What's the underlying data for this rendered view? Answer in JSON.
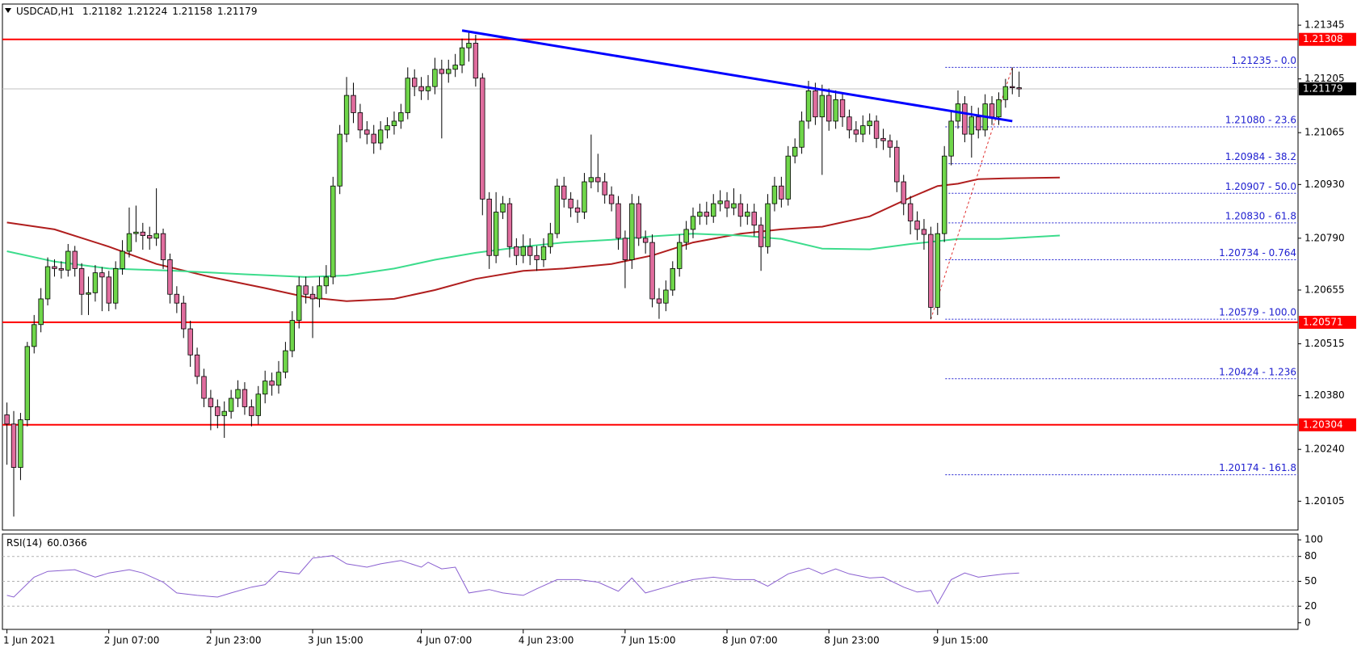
{
  "chart_data": [
    {
      "type": "candlestick",
      "title": "USDCAD,H1",
      "ohlc": {
        "open": [
          1.2033,
          1.20306,
          1.20193,
          1.20317,
          1.20508,
          1.20565,
          1.20632,
          1.20716,
          1.20711,
          1.20707,
          1.20756,
          1.20711,
          1.20644,
          1.20648,
          1.207,
          1.20689,
          1.20621,
          1.20711,
          1.20756,
          1.20802,
          1.20806,
          1.20797,
          1.2079,
          1.20802,
          1.20734,
          1.20644,
          1.20621,
          1.20554,
          1.20486,
          1.2043,
          1.20373,
          1.20351,
          1.20328,
          1.20339,
          1.20373,
          1.20396,
          1.20351,
          1.20328,
          1.20384,
          1.20418,
          1.20407,
          1.20441,
          1.20497,
          1.20576,
          1.20666,
          1.20644,
          1.20632,
          1.20666,
          1.20689,
          1.20926,
          1.21061,
          1.21162,
          1.21117,
          1.21072,
          1.21061,
          1.21038,
          1.21072,
          1.21083,
          1.21095,
          1.21117,
          1.21207,
          1.21185,
          1.21174,
          1.21185,
          1.2123,
          1.21219,
          1.2123,
          1.21241,
          1.21286,
          1.21298,
          1.21207,
          1.20892,
          1.20745,
          1.20858,
          1.2088,
          1.20768,
          1.20745,
          1.20768,
          1.20745,
          1.20734,
          1.20768,
          1.20802,
          1.20926,
          1.20892,
          1.20869,
          1.20858,
          1.20937,
          1.20948,
          1.20937,
          1.20903,
          1.2088,
          1.2079,
          1.20734,
          1.2088,
          1.2079,
          1.20779,
          1.20632,
          1.20621,
          1.20655,
          1.20711,
          1.20779,
          1.20813,
          1.20847,
          1.20858,
          1.20847,
          1.2088,
          1.20887,
          1.20869,
          1.2088,
          1.20847,
          1.20858,
          1.20824,
          1.20768,
          1.2088,
          1.20926,
          1.20892,
          1.21004,
          1.21027,
          1.21095,
          1.21174,
          1.21106,
          1.21162,
          1.21095,
          1.21151,
          1.21106,
          1.21072,
          1.21061,
          1.21083,
          1.21095,
          1.2105,
          1.21044,
          1.21027,
          1.20937,
          1.2088,
          1.20835,
          1.20813,
          1.208,
          1.2061,
          1.20802,
          1.21004,
          1.21095,
          1.2114,
          1.21061,
          1.21106,
          1.21072,
          1.2114,
          1.21106,
          1.21151,
          1.21185,
          1.21182
        ],
        "high": [
          1.20362,
          1.2034,
          1.20335,
          1.2052,
          1.2059,
          1.2066,
          1.2074,
          1.20735,
          1.2073,
          1.20775,
          1.2077,
          1.20725,
          1.2069,
          1.2072,
          1.20715,
          1.20705,
          1.2073,
          1.20785,
          1.2087,
          1.20875,
          1.2083,
          1.2082,
          1.2092,
          1.20815,
          1.2075,
          1.20665,
          1.2064,
          1.20575,
          1.20505,
          1.2045,
          1.20395,
          1.2037,
          1.20365,
          1.20395,
          1.2042,
          1.20415,
          1.2037,
          1.20405,
          1.20445,
          1.2044,
          1.2047,
          1.2052,
          1.206,
          1.2069,
          1.2069,
          1.20665,
          1.2069,
          1.2072,
          1.2095,
          1.21085,
          1.2121,
          1.21195,
          1.2114,
          1.21095,
          1.21085,
          1.21095,
          1.21105,
          1.2112,
          1.2114,
          1.21235,
          1.2123,
          1.2121,
          1.21215,
          1.2126,
          1.21255,
          1.21255,
          1.2127,
          1.2131,
          1.2133,
          1.2132,
          1.2122,
          1.2091,
          1.2091,
          1.209,
          1.20895,
          1.2079,
          1.208,
          1.2079,
          1.2077,
          1.2079,
          1.2083,
          1.20945,
          1.2095,
          1.2091,
          1.2089,
          1.2096,
          1.2106,
          1.2101,
          1.2096,
          1.20925,
          1.209,
          1.2081,
          1.20905,
          1.209,
          1.2081,
          1.208,
          1.2066,
          1.2068,
          1.2073,
          1.208,
          1.20835,
          1.2087,
          1.2088,
          1.20885,
          1.20905,
          1.20915,
          1.2091,
          1.2092,
          1.20905,
          1.2088,
          1.2088,
          1.20845,
          1.20905,
          1.2095,
          1.2095,
          1.2103,
          1.2105,
          1.2112,
          1.212,
          1.21195,
          1.2119,
          1.2118,
          1.21175,
          1.2117,
          1.21125,
          1.21095,
          1.2111,
          1.21115,
          1.2111,
          1.21075,
          1.2106,
          1.21045,
          1.20955,
          1.209,
          1.2086,
          1.2084,
          1.2082,
          1.2083,
          1.2103,
          1.2112,
          1.21175,
          1.2116,
          1.21135,
          1.2113,
          1.21165,
          1.2116,
          1.2117,
          1.21205,
          1.21235,
          1.21224
        ],
        "low": [
          1.202,
          1.20065,
          1.2016,
          1.203,
          1.2049,
          1.20545,
          1.20615,
          1.2069,
          1.20685,
          1.2069,
          1.2069,
          1.2059,
          1.2059,
          1.20625,
          1.206,
          1.206,
          1.20605,
          1.20695,
          1.2074,
          1.2078,
          1.2076,
          1.2076,
          1.2077,
          1.2071,
          1.2062,
          1.20595,
          1.2053,
          1.20455,
          1.2041,
          1.2035,
          1.2029,
          1.20295,
          1.2027,
          1.2032,
          1.2035,
          1.2033,
          1.203,
          1.20305,
          1.2036,
          1.2038,
          1.20385,
          1.20425,
          1.2048,
          1.20555,
          1.2062,
          1.2053,
          1.2061,
          1.20645,
          1.2067,
          1.20905,
          1.2104,
          1.2109,
          1.2105,
          1.21035,
          1.2101,
          1.2102,
          1.2105,
          1.2106,
          1.21075,
          1.211,
          1.2116,
          1.2115,
          1.2115,
          1.21165,
          1.2105,
          1.21195,
          1.2121,
          1.2122,
          1.2125,
          1.21185,
          1.2085,
          1.2071,
          1.20725,
          1.2084,
          1.2074,
          1.2072,
          1.20725,
          1.2072,
          1.20705,
          1.20715,
          1.2075,
          1.2079,
          1.2087,
          1.20845,
          1.2083,
          1.2084,
          1.2092,
          1.2091,
          1.2088,
          1.2086,
          1.2076,
          1.2066,
          1.2071,
          1.2077,
          1.2075,
          1.2061,
          1.2058,
          1.206,
          1.2064,
          1.2069,
          1.2076,
          1.2079,
          1.20825,
          1.20825,
          1.2083,
          1.2086,
          1.20845,
          1.2085,
          1.2082,
          1.20825,
          1.20795,
          1.20705,
          1.2075,
          1.2086,
          1.2087,
          1.20875,
          1.20985,
          1.2101,
          1.21075,
          1.21085,
          1.20955,
          1.2107,
          1.21075,
          1.2108,
          1.2105,
          1.2104,
          1.2104,
          1.2106,
          1.21025,
          1.2102,
          1.21,
          1.2091,
          1.2085,
          1.208,
          1.20785,
          1.2076,
          1.20579,
          1.2059,
          1.2078,
          1.2098,
          1.21075,
          1.2104,
          1.21,
          1.2105,
          1.21055,
          1.21085,
          1.21085,
          1.2113,
          1.21165,
          1.21158
        ],
        "close": [
          1.20306,
          1.20193,
          1.20317,
          1.20508,
          1.20565,
          1.20632,
          1.20716,
          1.20711,
          1.20707,
          1.20756,
          1.20711,
          1.20644,
          1.20648,
          1.207,
          1.20689,
          1.20621,
          1.20711,
          1.20756,
          1.20802,
          1.20806,
          1.20797,
          1.2079,
          1.20802,
          1.20734,
          1.20644,
          1.20621,
          1.20554,
          1.20486,
          1.2043,
          1.20373,
          1.20351,
          1.20328,
          1.20339,
          1.20373,
          1.20396,
          1.20351,
          1.20328,
          1.20384,
          1.20418,
          1.20407,
          1.20441,
          1.20497,
          1.20576,
          1.20666,
          1.20644,
          1.20632,
          1.20666,
          1.20689,
          1.20926,
          1.21061,
          1.21162,
          1.21117,
          1.21072,
          1.21061,
          1.21038,
          1.21072,
          1.21083,
          1.21095,
          1.21117,
          1.21207,
          1.21185,
          1.21174,
          1.21185,
          1.2123,
          1.21219,
          1.2123,
          1.21241,
          1.21286,
          1.21298,
          1.21207,
          1.20892,
          1.20745,
          1.20858,
          1.2088,
          1.20768,
          1.20745,
          1.20768,
          1.20745,
          1.20734,
          1.20768,
          1.20802,
          1.20926,
          1.20892,
          1.20869,
          1.20858,
          1.20937,
          1.20948,
          1.20937,
          1.20903,
          1.2088,
          1.2079,
          1.20734,
          1.2088,
          1.2079,
          1.20779,
          1.20632,
          1.20621,
          1.20655,
          1.20711,
          1.20779,
          1.20813,
          1.20847,
          1.20858,
          1.20847,
          1.2088,
          1.20887,
          1.20869,
          1.2088,
          1.20847,
          1.20858,
          1.20824,
          1.20768,
          1.2088,
          1.20926,
          1.20892,
          1.21004,
          1.21027,
          1.21095,
          1.21174,
          1.21106,
          1.21162,
          1.21095,
          1.21151,
          1.21106,
          1.21072,
          1.21061,
          1.21083,
          1.21095,
          1.2105,
          1.21044,
          1.21027,
          1.20937,
          1.2088,
          1.20835,
          1.20813,
          1.208,
          1.2061,
          1.20802,
          1.21004,
          1.21095,
          1.2114,
          1.21061,
          1.21106,
          1.21072,
          1.2114,
          1.21106,
          1.21151,
          1.21185,
          1.21182,
          1.21179
        ]
      },
      "up_color": "#6fd64a",
      "down_color": "#e06d9e",
      "moving_averages": [
        {
          "color": "#b01e1e",
          "x": [
            0,
            7,
            15,
            22,
            30,
            38,
            44,
            50,
            57,
            63,
            69,
            76,
            82,
            89,
            95,
            101,
            108,
            114,
            120,
            127,
            133,
            137,
            140,
            143,
            147,
            155
          ],
          "values": [
            1.20831,
            1.20813,
            1.20768,
            1.20723,
            1.20689,
            1.2066,
            1.20637,
            1.20626,
            1.20632,
            1.20655,
            1.20684,
            1.20705,
            1.20711,
            1.20723,
            1.20745,
            1.20779,
            1.20802,
            1.20813,
            1.2082,
            1.20847,
            1.20896,
            1.20926,
            1.20932,
            1.20944,
            1.20946,
            1.20948
          ]
        },
        {
          "color": "#3cdc8c",
          "x": [
            0,
            7,
            15,
            25,
            35,
            44,
            50,
            57,
            63,
            69,
            76,
            82,
            89,
            95,
            101,
            108,
            114,
            120,
            127,
            133,
            140,
            146,
            155
          ],
          "values": [
            1.20756,
            1.20729,
            1.20711,
            1.20705,
            1.20696,
            1.20689,
            1.20693,
            1.20711,
            1.20734,
            1.20752,
            1.20768,
            1.20779,
            1.20786,
            1.20795,
            1.20802,
            1.20797,
            1.20788,
            1.20763,
            1.20761,
            1.20775,
            1.20788,
            1.20788,
            1.20797
          ]
        }
      ],
      "trendline": {
        "color": "#0000ff",
        "x": [
          67,
          148
        ],
        "values": [
          1.21331,
          1.21095
        ]
      },
      "levels": [
        1.21308,
        1.20571,
        1.20304
      ],
      "level_color": "#ff0000",
      "fibonacci": {
        "color": "#2020d0",
        "anchor_color": "#e03030",
        "levels": [
          {
            "value": 1.21235,
            "label": "1.21235 - 0.0"
          },
          {
            "value": 1.2108,
            "label": "1.21080 - 23.6"
          },
          {
            "value": 1.20984,
            "label": "1.20984 - 38.2"
          },
          {
            "value": 1.20907,
            "label": "1.20907 - 50.0"
          },
          {
            "value": 1.2083,
            "label": "1.20830 - 61.8"
          },
          {
            "value": 1.20734,
            "label": "1.20734 - 0.764"
          },
          {
            "value": 1.20579,
            "label": "1.20579 - 100.0"
          },
          {
            "value": 1.20424,
            "label": "1.20424 - 1.236"
          },
          {
            "value": 1.20174,
            "label": "1.20174 - 161.8"
          }
        ]
      },
      "ylim": [
        1.2003,
        1.214
      ],
      "yticks": [
        1.21345,
        1.21205,
        1.21065,
        {
          "value": 1.2093,
          "label": "1.20930"
        },
        {
          "value": 1.2079,
          "label": "1.20790"
        },
        1.20655,
        1.20515,
        {
          "value": 1.2038,
          "label": "1.20380"
        },
        {
          "value": 1.2024,
          "label": "1.20240"
        },
        1.20105
      ],
      "xticks": [
        {
          "value": 0,
          "label": "1 Jun 2021"
        },
        {
          "value": 15,
          "label": "2 Jun 07:00"
        },
        {
          "value": 30,
          "label": "2 Jun 23:00"
        },
        {
          "value": 45,
          "label": "3 Jun 15:00"
        },
        {
          "value": 61,
          "label": "4 Jun 07:00"
        },
        {
          "value": 76,
          "label": "4 Jun 23:00"
        },
        {
          "value": 91,
          "label": "7 Jun 15:00"
        },
        {
          "value": 106,
          "label": "8 Jun 07:00"
        },
        {
          "value": 121,
          "label": "8 Jun 23:00"
        },
        {
          "value": 137,
          "label": "9 Jun 15:00"
        }
      ]
    },
    {
      "type": "line",
      "title": "RSI(14)",
      "color": "#8a60d0",
      "x": [
        0,
        1,
        4,
        6,
        10,
        13,
        15,
        18,
        20,
        23,
        25,
        28,
        31,
        33,
        36,
        38,
        40,
        43,
        45,
        48,
        50,
        53,
        55,
        58,
        61,
        62,
        64,
        66,
        68,
        71,
        73,
        76,
        78,
        81,
        84,
        87,
        90,
        92,
        94,
        97,
        99,
        101,
        104,
        107,
        110,
        112,
        115,
        118,
        120,
        122,
        124,
        127,
        129,
        132,
        134,
        136,
        137,
        139,
        141,
        143,
        145,
        147,
        149
      ],
      "values": [
        33,
        31,
        55,
        62,
        64,
        55,
        60,
        64,
        60,
        49,
        36,
        33,
        31,
        36,
        43,
        46,
        62,
        59,
        78,
        81,
        71,
        67,
        71,
        75,
        67,
        73,
        65,
        67,
        36,
        40,
        36,
        33,
        41,
        52,
        52,
        49,
        38,
        54,
        36,
        43,
        48,
        52,
        55,
        52,
        52,
        44,
        59,
        66,
        59,
        65,
        59,
        54,
        55,
        43,
        37,
        39,
        23,
        52,
        60,
        55,
        57,
        59,
        60.0366
      ],
      "ylim": [
        -8,
        107
      ],
      "yticks": [
        0,
        20,
        50,
        80,
        100
      ]
    }
  ]
}
